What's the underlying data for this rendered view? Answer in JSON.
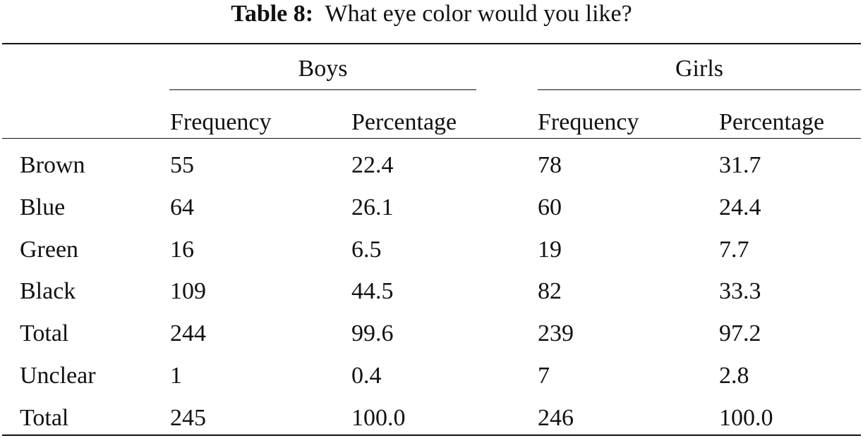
{
  "caption": {
    "label": "Table 8:",
    "text": "What eye color would you like?"
  },
  "table": {
    "groups": [
      "Boys",
      "Girls"
    ],
    "columns": [
      "Frequency",
      "Percentage",
      "Frequency",
      "Percentage"
    ],
    "rows": [
      [
        "Brown",
        "55",
        "22.4",
        "78",
        "31.7"
      ],
      [
        "Blue",
        "64",
        "26.1",
        "60",
        "24.4"
      ],
      [
        "Green",
        "16",
        "6.5",
        "19",
        "7.7"
      ],
      [
        "Black",
        "109",
        "44.5",
        "82",
        "33.3"
      ],
      [
        "Total",
        "244",
        "99.6",
        "239",
        "97.2"
      ],
      [
        "Unclear",
        "1",
        "0.4",
        "7",
        "2.8"
      ],
      [
        "Total",
        "245",
        "100.0",
        "246",
        "100.0"
      ]
    ]
  }
}
